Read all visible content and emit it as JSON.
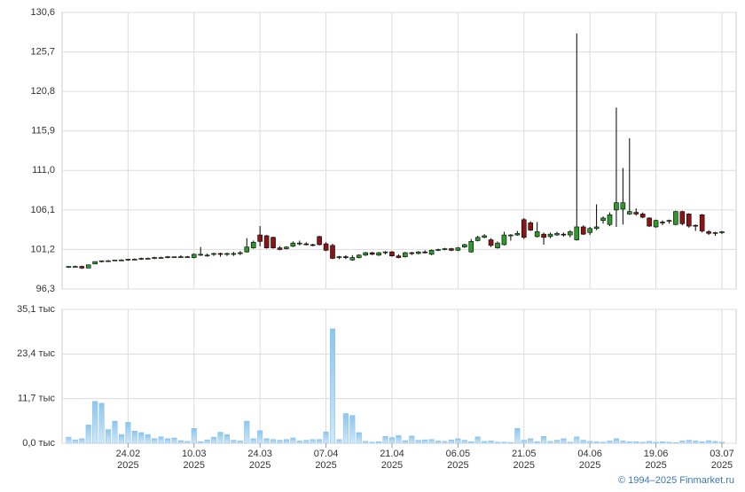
{
  "chart_data": [
    {
      "type": "candlestick",
      "up_color": "#2e9a2e",
      "down_color": "#8b1414",
      "open": [
        99.0,
        99.1,
        99.1,
        98.9,
        99.4,
        99.7,
        99.8,
        99.8,
        99.9,
        99.9,
        100.0,
        100.0,
        100.1,
        100.1,
        100.2,
        100.2,
        100.3,
        100.3,
        100.3,
        100.2,
        100.5,
        100.5,
        100.6,
        100.7,
        100.6,
        100.7,
        100.7,
        100.9,
        101.4,
        103.0,
        102.9,
        102.7,
        101.4,
        101.3,
        101.6,
        101.9,
        101.9,
        101.8,
        102.8,
        101.9,
        101.7,
        100.2,
        100.3,
        99.9,
        100.2,
        100.5,
        100.8,
        100.5,
        100.8,
        100.9,
        100.4,
        100.3,
        100.8,
        100.7,
        100.9,
        100.6,
        101.1,
        101.2,
        101.3,
        101.1,
        101.5,
        100.9,
        102.3,
        102.7,
        102.4,
        101.4,
        101.8,
        102.9,
        103.0,
        104.9,
        104.5,
        102.8,
        103.1,
        102.8,
        103.0,
        103.1,
        103.0,
        102.4,
        104.0,
        103.3,
        103.8,
        104.8,
        104.3,
        106.1,
        106.2,
        105.6,
        105.8,
        105.6,
        105.1,
        104.0,
        104.6,
        104.7,
        104.3,
        105.9,
        105.6,
        104.2,
        105.5,
        103.4,
        103.2,
        103.3
      ],
      "high": [
        99.1,
        99.2,
        99.2,
        99.3,
        99.7,
        99.8,
        99.9,
        99.9,
        100.0,
        100.0,
        100.1,
        100.2,
        100.2,
        100.3,
        100.3,
        100.4,
        100.3,
        100.5,
        100.4,
        100.7,
        101.5,
        100.7,
        100.8,
        100.8,
        100.8,
        100.9,
        101.0,
        102.6,
        102.3,
        104.1,
        103.0,
        102.8,
        101.6,
        101.6,
        102.2,
        102.3,
        102.1,
        101.9,
        102.9,
        102.1,
        101.9,
        100.4,
        100.5,
        100.5,
        100.6,
        100.9,
        100.9,
        100.9,
        101.0,
        101.0,
        100.6,
        100.9,
        100.9,
        101.0,
        101.1,
        101.2,
        101.3,
        101.4,
        101.4,
        101.5,
        101.9,
        102.5,
        102.9,
        103.1,
        102.6,
        102.2,
        103.4,
        103.1,
        103.5,
        105.1,
        104.7,
        104.6,
        103.3,
        103.3,
        103.4,
        103.3,
        103.6,
        128.0,
        104.2,
        104.0,
        106.8,
        105.3,
        105.8,
        118.8,
        111.3,
        115.0,
        106.3,
        105.8,
        105.2,
        104.9,
        104.8,
        104.9,
        106.0,
        106.0,
        105.7,
        104.3,
        105.6,
        103.6,
        103.4,
        103.5
      ],
      "low": [
        98.9,
        99.0,
        98.8,
        98.9,
        99.4,
        99.6,
        99.7,
        99.8,
        99.8,
        99.8,
        99.9,
        99.9,
        100.0,
        100.0,
        100.1,
        100.1,
        100.2,
        100.2,
        100.2,
        100.1,
        100.4,
        100.3,
        100.4,
        100.3,
        100.4,
        100.4,
        100.5,
        100.8,
        101.3,
        101.6,
        101.3,
        101.3,
        101.1,
        101.2,
        101.5,
        101.7,
        101.7,
        101.6,
        101.7,
        101.0,
        100.0,
        100.0,
        100.0,
        99.8,
        100.1,
        100.4,
        100.5,
        100.4,
        100.6,
        100.3,
        100.1,
        100.2,
        100.5,
        100.6,
        100.7,
        100.5,
        101.0,
        101.1,
        101.0,
        101.0,
        101.4,
        100.8,
        102.2,
        102.6,
        101.5,
        101.3,
        101.7,
        102.3,
        102.9,
        102.5,
        103.5,
        102.7,
        101.8,
        102.6,
        102.9,
        102.8,
        102.7,
        102.3,
        103.0,
        103.0,
        103.6,
        104.4,
        104.1,
        104.0,
        104.3,
        105.5,
        105.4,
        105.1,
        104.0,
        103.9,
        104.2,
        104.4,
        104.2,
        104.2,
        103.9,
        103.5,
        103.3,
        103.0,
        102.9,
        103.1
      ],
      "close": [
        99.1,
        99.1,
        98.9,
        99.3,
        99.7,
        99.8,
        99.8,
        99.9,
        99.9,
        100.0,
        100.0,
        100.1,
        100.1,
        100.2,
        100.2,
        100.3,
        100.3,
        100.3,
        100.3,
        100.6,
        100.6,
        100.5,
        100.7,
        100.6,
        100.7,
        100.7,
        100.8,
        101.5,
        102.1,
        102.2,
        101.4,
        101.4,
        101.2,
        101.5,
        102.0,
        102.0,
        101.8,
        101.7,
        101.8,
        101.1,
        100.1,
        100.3,
        100.2,
        100.2,
        100.5,
        100.8,
        100.6,
        100.8,
        100.9,
        100.4,
        100.2,
        100.8,
        100.7,
        100.9,
        100.8,
        101.1,
        101.2,
        101.3,
        101.1,
        101.4,
        101.8,
        102.2,
        102.7,
        102.9,
        101.7,
        102.0,
        103.0,
        103.0,
        103.2,
        102.7,
        103.6,
        103.4,
        102.7,
        103.1,
        103.2,
        103.0,
        103.4,
        104.0,
        103.1,
        103.8,
        104.0,
        105.1,
        105.5,
        107.0,
        107.0,
        105.9,
        105.6,
        105.2,
        104.1,
        104.8,
        104.5,
        104.8,
        105.9,
        104.4,
        104.1,
        104.1,
        103.5,
        103.2,
        103.3,
        103.4
      ],
      "ylim": [
        96.3,
        130.6
      ],
      "yticks": [
        {
          "value": 96.3,
          "label": "96,3"
        },
        {
          "value": 101.2,
          "label": "101,2"
        },
        {
          "value": 106.1,
          "label": "106,1"
        },
        {
          "value": 111.0,
          "label": "111,0"
        },
        {
          "value": 115.9,
          "label": "115,9"
        },
        {
          "value": 120.8,
          "label": "120,8"
        },
        {
          "value": 125.7,
          "label": "125,7"
        },
        {
          "value": 130.6,
          "label": "130,6"
        }
      ],
      "grid": true
    },
    {
      "type": "bar",
      "color": "#9fd0f2",
      "categories": [
        null,
        null,
        null,
        null,
        null,
        null,
        null,
        null,
        null,
        "24.02",
        null,
        null,
        null,
        null,
        null,
        null,
        null,
        null,
        null,
        "10.03",
        null,
        null,
        null,
        null,
        null,
        null,
        null,
        null,
        null,
        "24.03",
        null,
        null,
        null,
        null,
        null,
        null,
        null,
        null,
        null,
        "07.04",
        null,
        null,
        null,
        null,
        null,
        null,
        null,
        null,
        null,
        "21.04",
        null,
        null,
        null,
        null,
        null,
        null,
        null,
        null,
        null,
        "06.05",
        null,
        null,
        null,
        null,
        null,
        null,
        null,
        null,
        null,
        "21.05",
        null,
        null,
        null,
        null,
        null,
        null,
        null,
        null,
        null,
        "04.06",
        null,
        null,
        null,
        null,
        null,
        null,
        null,
        null,
        null,
        "19.06",
        null,
        null,
        null,
        null,
        null,
        null,
        null,
        null,
        null,
        "03.07"
      ],
      "category_years": [
        null,
        null,
        null,
        null,
        null,
        null,
        null,
        null,
        null,
        "2025",
        null,
        null,
        null,
        null,
        null,
        null,
        null,
        null,
        null,
        "2025",
        null,
        null,
        null,
        null,
        null,
        null,
        null,
        null,
        null,
        "2025",
        null,
        null,
        null,
        null,
        null,
        null,
        null,
        null,
        null,
        "2025",
        null,
        null,
        null,
        null,
        null,
        null,
        null,
        null,
        null,
        "2025",
        null,
        null,
        null,
        null,
        null,
        null,
        null,
        null,
        null,
        "2025",
        null,
        null,
        null,
        null,
        null,
        null,
        null,
        null,
        null,
        "2025",
        null,
        null,
        null,
        null,
        null,
        null,
        null,
        null,
        null,
        "2025",
        null,
        null,
        null,
        null,
        null,
        null,
        null,
        null,
        null,
        "2025",
        null,
        null,
        null,
        null,
        null,
        null,
        null,
        null,
        null,
        "2025"
      ],
      "values": [
        1.6,
        0.9,
        1.2,
        4.8,
        11.0,
        10.5,
        3.6,
        5.8,
        2.3,
        5.5,
        3.2,
        2.8,
        2.3,
        1.2,
        1.7,
        1.2,
        1.4,
        0.7,
        0.5,
        3.9,
        0.4,
        0.9,
        1.6,
        2.9,
        2.3,
        0.8,
        0.6,
        5.8,
        1.2,
        3.3,
        1.2,
        1.0,
        0.8,
        1.0,
        1.4,
        0.6,
        0.8,
        1.0,
        1.0,
        3.0,
        30.0,
        1.0,
        7.8,
        7.3,
        2.8,
        0.5,
        0.3,
        0.4,
        1.8,
        1.5,
        2.0,
        0.7,
        1.9,
        0.8,
        0.9,
        1.0,
        0.6,
        0.5,
        0.9,
        1.2,
        0.8,
        0.4,
        1.7,
        0.5,
        0.6,
        0.3,
        0.3,
        0.2,
        3.9,
        0.8,
        1.2,
        0.4,
        1.8,
        0.5,
        0.8,
        1.2,
        0.3,
        1.7,
        0.8,
        0.5,
        0.4,
        0.3,
        0.6,
        1.2,
        0.6,
        0.4,
        0.4,
        0.3,
        0.5,
        0.3,
        0.4,
        0.3,
        0.2,
        0.6,
        0.8,
        0.6,
        0.4,
        0.7,
        0.5,
        0.3
      ],
      "ylim": [
        0,
        35.1
      ],
      "yticks": [
        {
          "value": 0,
          "label": "0,0 тыс"
        },
        {
          "value": 11.7,
          "label": "11,7 тыс"
        },
        {
          "value": 23.4,
          "label": "23,4 тыс"
        },
        {
          "value": 35.1,
          "label": "35,1 тыс"
        }
      ],
      "grid": true
    }
  ],
  "footer": "© 1994–2025 Finmarket.ru"
}
